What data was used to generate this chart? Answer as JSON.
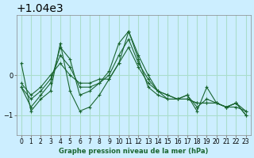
{
  "title": "Graphe pression niveau de la mer (hPa)",
  "bg_color": "#cceeff",
  "grid_color": "#aaddcc",
  "line_color": "#1a6630",
  "ylim": [
    1038.5,
    1041.5
  ],
  "yticks": [
    1039,
    1040
  ],
  "xlim": [
    -0.5,
    23.5
  ],
  "xticks": [
    0,
    1,
    2,
    3,
    4,
    5,
    6,
    7,
    8,
    9,
    10,
    11,
    12,
    13,
    14,
    15,
    16,
    17,
    18,
    19,
    20,
    21,
    22,
    23
  ],
  "series": [
    [
      1039.7,
      1039.2,
      1039.5,
      1039.8,
      1040.7,
      1040.4,
      1039.5,
      1039.6,
      1039.8,
      1040.1,
      1040.8,
      1041.1,
      1040.5,
      1040.0,
      1039.6,
      1039.4,
      1039.4,
      1039.5,
      1039.2,
      1039.4,
      1039.3,
      1039.2,
      1039.3,
      1039.0
    ],
    [
      1039.7,
      1039.4,
      1039.6,
      1039.9,
      1040.5,
      1040.2,
      1039.7,
      1039.7,
      1039.8,
      1040.0,
      1040.5,
      1040.9,
      1040.3,
      1039.9,
      1039.6,
      1039.5,
      1039.4,
      1039.4,
      1039.3,
      1039.3,
      1039.3,
      1039.2,
      1039.3,
      1039.1
    ],
    [
      1039.8,
      1039.5,
      1039.7,
      1040.0,
      1040.3,
      1040.0,
      1039.8,
      1039.8,
      1039.9,
      1039.9,
      1040.3,
      1040.7,
      1040.2,
      1039.8,
      1039.6,
      1039.5,
      1039.4,
      1039.4,
      1039.3,
      1039.3,
      1039.3,
      1039.2,
      1039.2,
      1039.1
    ],
    [
      1040.3,
      1039.1,
      1039.4,
      1039.6,
      1040.8,
      1039.6,
      1039.1,
      1039.2,
      1039.5,
      1039.9,
      1040.3,
      1041.1,
      1040.4,
      1039.7,
      1039.5,
      1039.4,
      1039.4,
      1039.5,
      1039.1,
      1039.7,
      1039.3,
      1039.2,
      1039.3,
      1039.0
    ]
  ]
}
